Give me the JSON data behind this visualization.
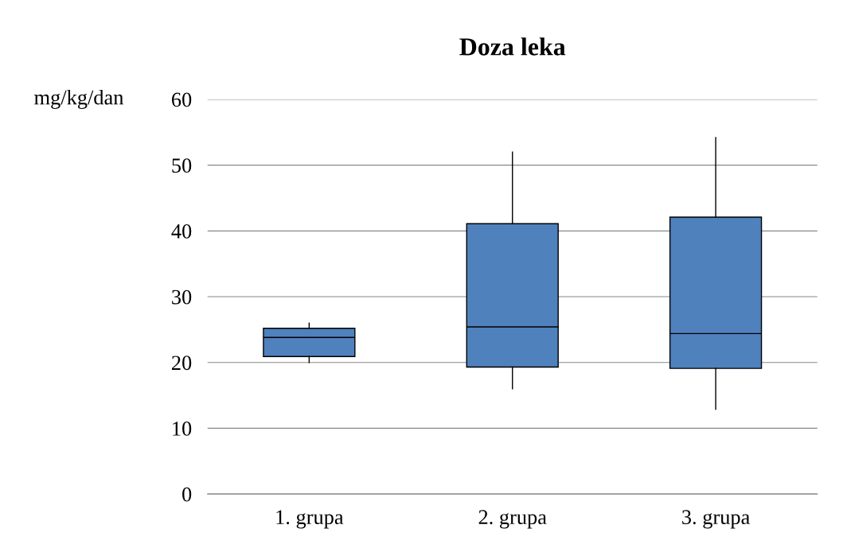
{
  "chart_data": {
    "type": "box",
    "title": "Doza leka",
    "ylabel": "mg/kg/dan",
    "categories": [
      "1. grupa",
      "2. grupa",
      "3. grupa"
    ],
    "color": "#4f81bd",
    "boxes": [
      {
        "low": 20,
        "q1": 20.9,
        "median": 23.8,
        "q3": 25.2,
        "high": 26
      },
      {
        "low": 16,
        "q1": 19.3,
        "median": 25.4,
        "q3": 41.1,
        "high": 52
      },
      {
        "low": 12.9,
        "q1": 19.1,
        "median": 24.4,
        "q3": 42.1,
        "high": 54.2
      }
    ],
    "ylim": [
      0,
      60
    ],
    "yticks": [
      0,
      10,
      20,
      30,
      40,
      50,
      60
    ],
    "grid": "y",
    "legend": false
  }
}
